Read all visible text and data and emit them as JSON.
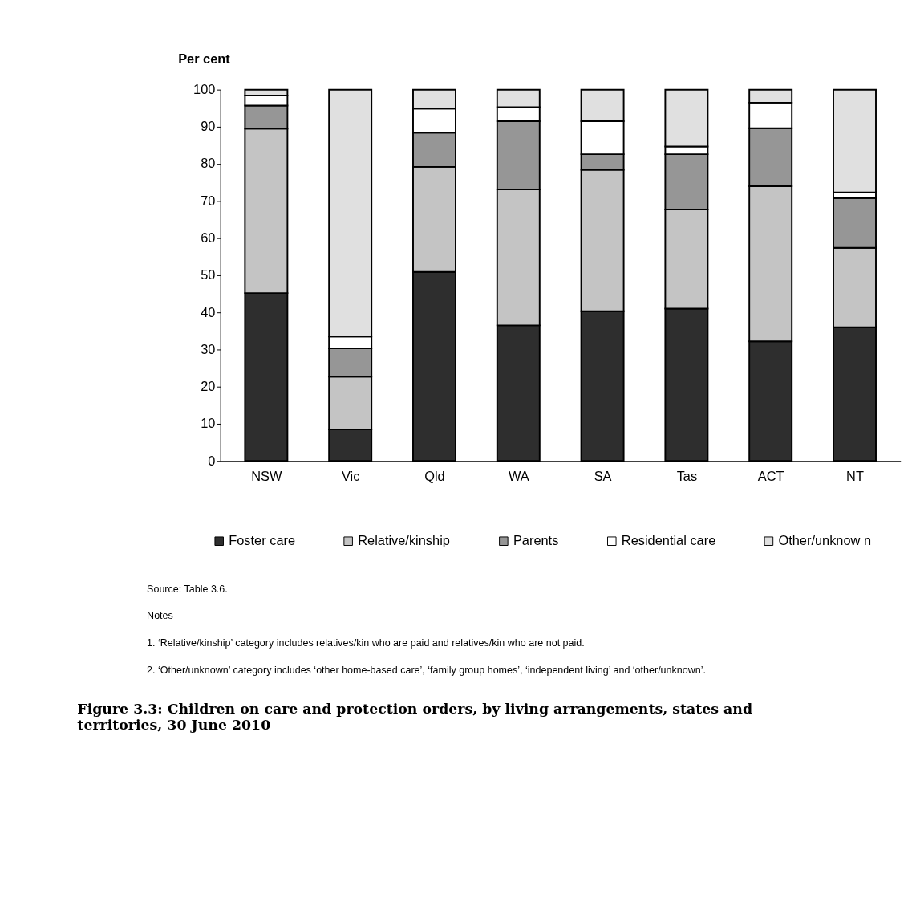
{
  "chart_data": {
    "type": "bar",
    "stacked": true,
    "title": "Figure 3.3: Children on care and protection orders, by living arrangements, states and territories, 30 June 2010",
    "ylabel": "Per cent",
    "categories": [
      "NSW",
      "Vic",
      "Qld",
      "WA",
      "SA",
      "Tas",
      "ACT",
      "NT"
    ],
    "series": [
      {
        "name": "Foster care",
        "color": "#2e2e2e",
        "values": [
          45.2,
          8.5,
          50.9,
          36.5,
          40.3,
          41.0,
          32.2,
          36.0
        ]
      },
      {
        "name": "Relative/kinship",
        "color": "#c4c4c4",
        "values": [
          44.3,
          14.2,
          28.3,
          36.6,
          38.1,
          26.7,
          41.8,
          21.4
        ]
      },
      {
        "name": "Parents",
        "color": "#969696",
        "values": [
          6.2,
          7.6,
          9.2,
          18.4,
          4.2,
          14.9,
          15.6,
          13.4
        ]
      },
      {
        "name": "Residential care",
        "color": "#ffffff",
        "values": [
          2.7,
          3.2,
          6.5,
          3.8,
          8.9,
          2.1,
          6.9,
          1.5
        ]
      },
      {
        "name": "Other/unknow n",
        "color": "#e0e0e0",
        "values": [
          1.6,
          66.5,
          5.1,
          4.7,
          8.5,
          15.3,
          3.5,
          27.7
        ]
      }
    ],
    "ylim": [
      0,
      100
    ],
    "yticks": [
      0,
      10,
      20,
      30,
      40,
      50,
      60,
      70,
      80,
      90,
      100
    ],
    "grid": false,
    "legend": "bottom",
    "annotations": [
      "Source: Table 3.6.",
      "Notes",
      "1.     ‘Relative/kinship’ category includes relatives/kin who are paid and relatives/kin who are not paid.",
      "2.     ‘Other/unknown’ category includes ‘other home-based care’, ‘family group homes’, ‘independent living’ and ‘other/unknown’."
    ]
  }
}
